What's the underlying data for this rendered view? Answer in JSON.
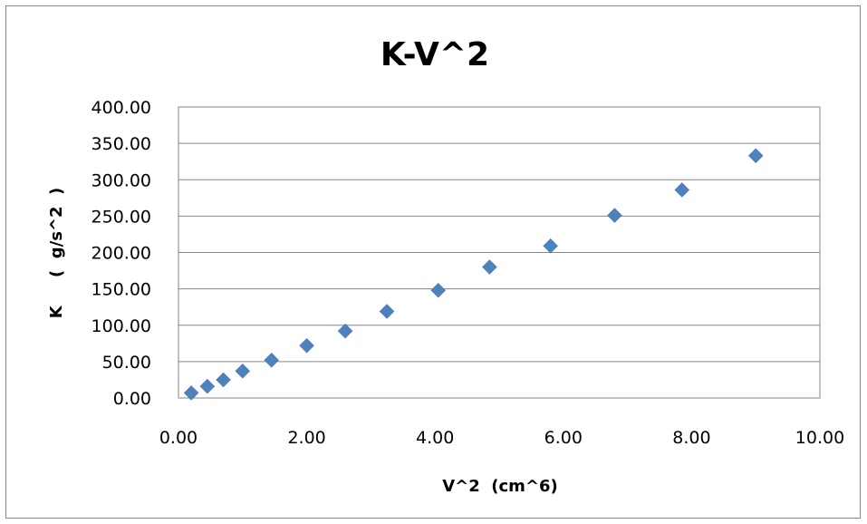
{
  "chart_data": {
    "type": "scatter",
    "title": "K-V^2",
    "xlabel": "V^2  (cm^6)",
    "ylabel": "K     (  g/s^2  )",
    "xlim": [
      0,
      10
    ],
    "ylim": [
      0,
      400
    ],
    "x_ticks": [
      "0.00",
      "2.00",
      "4.00",
      "6.00",
      "8.00",
      "10.00"
    ],
    "y_ticks": [
      "0.00",
      "50.00",
      "100.00",
      "150.00",
      "200.00",
      "250.00",
      "300.00",
      "350.00",
      "400.00"
    ],
    "grid": "horizontal",
    "legend": "none",
    "marker": "diamond",
    "color": "#4f81bd",
    "points": [
      {
        "x": 0.2,
        "y": 7
      },
      {
        "x": 0.45,
        "y": 16
      },
      {
        "x": 0.7,
        "y": 25
      },
      {
        "x": 1.0,
        "y": 37
      },
      {
        "x": 1.45,
        "y": 52
      },
      {
        "x": 2.0,
        "y": 72
      },
      {
        "x": 2.6,
        "y": 92
      },
      {
        "x": 3.25,
        "y": 119
      },
      {
        "x": 4.05,
        "y": 148
      },
      {
        "x": 4.85,
        "y": 180
      },
      {
        "x": 5.8,
        "y": 209
      },
      {
        "x": 6.8,
        "y": 251
      },
      {
        "x": 7.85,
        "y": 286
      },
      {
        "x": 9.0,
        "y": 333
      }
    ]
  }
}
